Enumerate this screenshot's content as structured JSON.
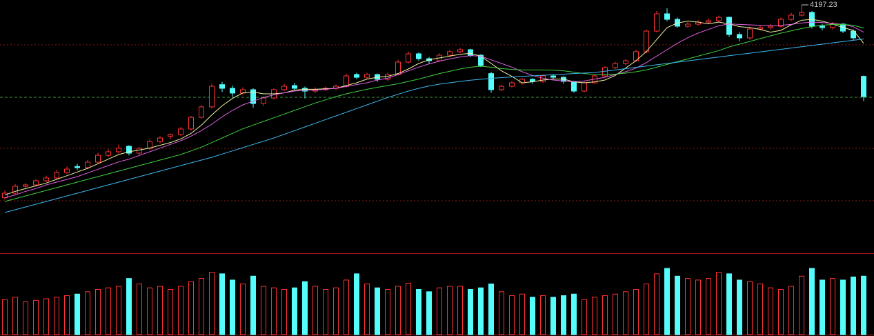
{
  "chart_data": {
    "type": "candlestick",
    "up_color": "#ff3232",
    "down_color": "#54fcfc",
    "background": "#000000",
    "ylim": [
      1925,
      4250
    ],
    "volume_ylim": [
      0,
      100
    ],
    "candles": [
      [
        2100,
        2180,
        2080,
        2150
      ],
      [
        2150,
        2250,
        2130,
        2225
      ],
      [
        2225,
        2260,
        2200,
        2240
      ],
      [
        2240,
        2300,
        2220,
        2285
      ],
      [
        2285,
        2340,
        2270,
        2315
      ],
      [
        2315,
        2400,
        2300,
        2375
      ],
      [
        2375,
        2440,
        2360,
        2412
      ],
      [
        2440,
        2470,
        2400,
        2428
      ],
      [
        2428,
        2510,
        2410,
        2488
      ],
      [
        2488,
        2590,
        2470,
        2562
      ],
      [
        2562,
        2630,
        2540,
        2600
      ],
      [
        2600,
        2680,
        2580,
        2638
      ],
      [
        2660,
        2670,
        2560,
        2585
      ],
      [
        2585,
        2650,
        2570,
        2638
      ],
      [
        2638,
        2730,
        2620,
        2712
      ],
      [
        2712,
        2770,
        2690,
        2750
      ],
      [
        2770,
        2800,
        2740,
        2788
      ],
      [
        2788,
        2870,
        2770,
        2848
      ],
      [
        2848,
        2990,
        2830,
        2975
      ],
      [
        2975,
        3110,
        2960,
        3088
      ],
      [
        3088,
        3340,
        3070,
        3312
      ],
      [
        3330,
        3360,
        3250,
        3290
      ],
      [
        3290,
        3320,
        3200,
        3238
      ],
      [
        3238,
        3300,
        3220,
        3275
      ],
      [
        3275,
        3290,
        3080,
        3125
      ],
      [
        3125,
        3200,
        3100,
        3185
      ],
      [
        3185,
        3290,
        3170,
        3275
      ],
      [
        3275,
        3340,
        3260,
        3312
      ],
      [
        3320,
        3350,
        3270,
        3290
      ],
      [
        3290,
        3310,
        3180,
        3260
      ],
      [
        3260,
        3300,
        3240,
        3275
      ],
      [
        3275,
        3310,
        3260,
        3290
      ],
      [
        3290,
        3330,
        3270,
        3312
      ],
      [
        3312,
        3450,
        3300,
        3425
      ],
      [
        3440,
        3460,
        3390,
        3410
      ],
      [
        3410,
        3460,
        3390,
        3440
      ],
      [
        3440,
        3450,
        3360,
        3388
      ],
      [
        3388,
        3460,
        3370,
        3440
      ],
      [
        3440,
        3600,
        3430,
        3575
      ],
      [
        3575,
        3690,
        3560,
        3665
      ],
      [
        3665,
        3680,
        3590,
        3612
      ],
      [
        3612,
        3630,
        3560,
        3590
      ],
      [
        3590,
        3670,
        3580,
        3650
      ],
      [
        3650,
        3710,
        3630,
        3688
      ],
      [
        3688,
        3730,
        3670,
        3710
      ],
      [
        3710,
        3720,
        3630,
        3650
      ],
      [
        3650,
        3660,
        3520,
        3538
      ],
      [
        3450,
        3470,
        3240,
        3275
      ],
      [
        3275,
        3330,
        3260,
        3312
      ],
      [
        3312,
        3370,
        3300,
        3350
      ],
      [
        3350,
        3400,
        3330,
        3388
      ],
      [
        3388,
        3400,
        3340,
        3365
      ],
      [
        3365,
        3440,
        3350,
        3425
      ],
      [
        3425,
        3440,
        3390,
        3410
      ],
      [
        3410,
        3420,
        3340,
        3365
      ],
      [
        3365,
        3370,
        3240,
        3260
      ],
      [
        3260,
        3370,
        3250,
        3350
      ],
      [
        3350,
        3440,
        3340,
        3425
      ],
      [
        3425,
        3530,
        3410,
        3515
      ],
      [
        3515,
        3580,
        3500,
        3560
      ],
      [
        3560,
        3610,
        3540,
        3590
      ],
      [
        3590,
        3710,
        3580,
        3688
      ],
      [
        3688,
        3930,
        3670,
        3912
      ],
      [
        3912,
        4130,
        3900,
        4100
      ],
      [
        4100,
        4160,
        4020,
        4040
      ],
      [
        4040,
        4060,
        3950,
        3965
      ],
      [
        3965,
        4010,
        3950,
        3988
      ],
      [
        3988,
        4030,
        3970,
        4010
      ],
      [
        4010,
        4050,
        3990,
        4025
      ],
      [
        4025,
        4080,
        4010,
        4062
      ],
      [
        4062,
        4070,
        3850,
        3875
      ],
      [
        3875,
        3900,
        3800,
        3838
      ],
      [
        3838,
        3960,
        3820,
        3935
      ],
      [
        3935,
        3980,
        3920,
        3950
      ],
      [
        3950,
        3990,
        3930,
        3965
      ],
      [
        3965,
        4060,
        3950,
        4040
      ],
      [
        4040,
        4110,
        4020,
        4085
      ],
      [
        4085,
        4197.23,
        4070,
        4115
      ],
      [
        4115,
        4130,
        3940,
        3965
      ],
      [
        3965,
        3990,
        3920,
        3950
      ],
      [
        3950,
        4010,
        3930,
        3988
      ],
      [
        3988,
        4000,
        3890,
        3912
      ],
      [
        3912,
        3930,
        3810,
        3838
      ],
      [
        3420,
        3430,
        3150,
        3200
      ]
    ],
    "volumes": [
      45,
      48,
      42,
      44,
      46,
      48,
      50,
      52,
      55,
      58,
      60,
      62,
      72,
      65,
      60,
      62,
      58,
      62,
      68,
      72,
      80,
      78,
      70,
      65,
      75,
      62,
      60,
      58,
      60,
      68,
      62,
      58,
      60,
      70,
      78,
      65,
      60,
      58,
      62,
      66,
      58,
      55,
      60,
      62,
      62,
      58,
      60,
      65,
      55,
      50,
      52,
      48,
      50,
      48,
      50,
      52,
      45,
      48,
      50,
      52,
      55,
      58,
      65,
      78,
      85,
      75,
      72,
      70,
      72,
      80,
      78,
      70,
      68,
      65,
      60,
      58,
      62,
      75,
      85,
      70,
      72,
      70,
      74,
      75
    ],
    "ma": [
      {
        "color": "#f0f0a0",
        "values": [
          2130,
          2170,
          2200,
          2230,
          2260,
          2300,
          2340,
          2380,
          2420,
          2470,
          2520,
          2570,
          2600,
          2620,
          2640,
          2670,
          2700,
          2740,
          2800,
          2890,
          3000,
          3100,
          3180,
          3240,
          3250,
          3230,
          3230,
          3240,
          3270,
          3280,
          3280,
          3285,
          3290,
          3320,
          3350,
          3390,
          3410,
          3420,
          3450,
          3500,
          3560,
          3600,
          3620,
          3640,
          3660,
          3670,
          3640,
          3560,
          3480,
          3420,
          3350,
          3360,
          3380,
          3390,
          3390,
          3360,
          3350,
          3360,
          3380,
          3430,
          3510,
          3590,
          3690,
          3820,
          3950,
          4000,
          4020,
          4010,
          3990,
          4010,
          3990,
          3960,
          3950,
          3930,
          3900,
          3920,
          3980,
          4030,
          4040,
          4020,
          3990,
          3950,
          3920,
          3780
        ]
      },
      {
        "color": "#e060e0",
        "values": [
          2100,
          2130,
          2170,
          2200,
          2240,
          2270,
          2300,
          2330,
          2370,
          2410,
          2450,
          2490,
          2520,
          2560,
          2600,
          2640,
          2680,
          2720,
          2770,
          2830,
          2900,
          2980,
          3050,
          3110,
          3150,
          3190,
          3220,
          3240,
          3260,
          3270,
          3270,
          3280,
          3290,
          3310,
          3330,
          3350,
          3380,
          3400,
          3440,
          3480,
          3520,
          3555,
          3585,
          3610,
          3630,
          3645,
          3640,
          3600,
          3560,
          3520,
          3470,
          3430,
          3400,
          3380,
          3370,
          3360,
          3370,
          3390,
          3410,
          3440,
          3470,
          3510,
          3570,
          3640,
          3710,
          3780,
          3840,
          3890,
          3930,
          3970,
          3990,
          3985,
          3980,
          3975,
          3970,
          3975,
          3985,
          4000,
          4010,
          4005,
          3995,
          3985,
          3960,
          3900
        ]
      },
      {
        "color": "#40d040",
        "values": [
          2060,
          2090,
          2120,
          2150,
          2180,
          2210,
          2240,
          2270,
          2300,
          2330,
          2360,
          2390,
          2420,
          2450,
          2480,
          2510,
          2540,
          2570,
          2610,
          2650,
          2700,
          2750,
          2800,
          2850,
          2890,
          2930,
          2970,
          3010,
          3050,
          3090,
          3130,
          3165,
          3200,
          3230,
          3255,
          3280,
          3300,
          3320,
          3340,
          3365,
          3390,
          3420,
          3450,
          3475,
          3500,
          3520,
          3530,
          3520,
          3505,
          3495,
          3490,
          3490,
          3490,
          3488,
          3480,
          3465,
          3450,
          3440,
          3440,
          3445,
          3455,
          3470,
          3490,
          3520,
          3550,
          3580,
          3610,
          3640,
          3670,
          3700,
          3740,
          3770,
          3800,
          3830,
          3860,
          3890,
          3915,
          3940,
          3960,
          3975,
          3985,
          3985,
          3975,
          3945
        ]
      },
      {
        "color": "#40b8f0",
        "values": [
          1940,
          1970,
          2000,
          2030,
          2060,
          2090,
          2120,
          2150,
          2180,
          2210,
          2240,
          2270,
          2300,
          2330,
          2360,
          2390,
          2420,
          2450,
          2480,
          2510,
          2540,
          2575,
          2610,
          2645,
          2680,
          2715,
          2750,
          2790,
          2830,
          2870,
          2910,
          2950,
          2990,
          3030,
          3070,
          3110,
          3150,
          3190,
          3225,
          3260,
          3290,
          3315,
          3335,
          3350,
          3365,
          3378,
          3388,
          3398,
          3406,
          3414,
          3420,
          3426,
          3432,
          3438,
          3444,
          3450,
          3456,
          3462,
          3476,
          3490,
          3504,
          3518,
          3532,
          3546,
          3560,
          3574,
          3588,
          3602,
          3616,
          3630,
          3644,
          3658,
          3672,
          3686,
          3700,
          3714,
          3728,
          3742,
          3756,
          3770,
          3784,
          3798,
          3812,
          3826
        ]
      }
    ]
  }
}
